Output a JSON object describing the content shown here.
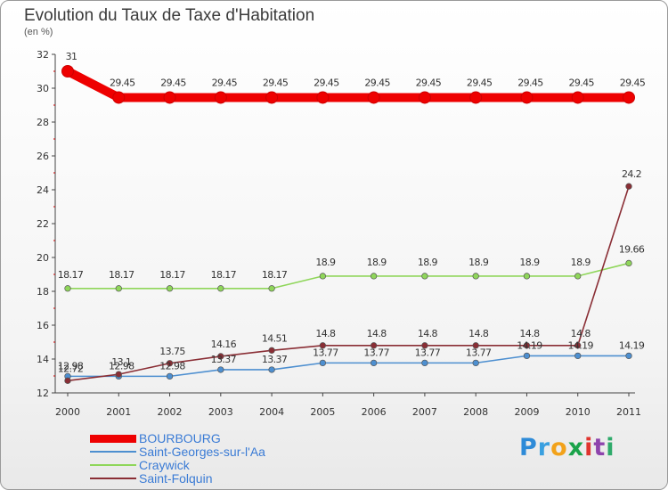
{
  "header": {
    "title": "Evolution du Taux de Taxe d'Habitation",
    "subtitle": "(en %)"
  },
  "logo": {
    "letters": [
      "P",
      "r",
      "o",
      "x",
      "i",
      "t",
      "i"
    ],
    "colors": [
      "#2e8bd8",
      "#3aa0e0",
      "#f2a21a",
      "#1aa34a",
      "#e0342e",
      "#8e44ad",
      "#2eaa6a"
    ]
  },
  "chart_data": {
    "type": "line",
    "title": "Evolution du Taux de Taxe d'Habitation",
    "ylabel": "(en %)",
    "xlabel": "",
    "categories": [
      "2000",
      "2001",
      "2002",
      "2003",
      "2004",
      "2005",
      "2006",
      "2007",
      "2008",
      "2009",
      "2010",
      "2011"
    ],
    "ylim": [
      12,
      32
    ],
    "yticks": [
      12,
      14,
      16,
      18,
      20,
      22,
      24,
      26,
      28,
      30,
      32
    ],
    "grid": false,
    "legend": "bottom-left",
    "series": [
      {
        "name": "BOURBOURG",
        "color": "#ee0000",
        "values": [
          31,
          29.45,
          29.45,
          29.45,
          29.45,
          29.45,
          29.45,
          29.45,
          29.45,
          29.45,
          29.45,
          29.45
        ],
        "labels": [
          "31",
          "29.45",
          "29.45",
          "29.45",
          "29.45",
          "29.45",
          "29.45",
          "29.45",
          "29.45",
          "29.45",
          "29.45",
          "29.45"
        ]
      },
      {
        "name": "Saint-Georges-sur-l'Aa",
        "color": "#4d8fd0",
        "values": [
          12.98,
          12.98,
          12.98,
          13.37,
          13.37,
          13.77,
          13.77,
          13.77,
          13.77,
          14.19,
          14.19,
          14.19
        ],
        "labels": [
          "12.98",
          "12.98",
          "12.98",
          "13.37",
          "13.37",
          "13.77",
          "13.77",
          "13.77",
          "13.77",
          "14.19",
          "14.19",
          "14.19"
        ]
      },
      {
        "name": "Craywick",
        "color": "#8fd65a",
        "values": [
          18.17,
          18.17,
          18.17,
          18.17,
          18.17,
          18.9,
          18.9,
          18.9,
          18.9,
          18.9,
          18.9,
          19.66
        ],
        "labels": [
          "18.17",
          "18.17",
          "18.17",
          "18.17",
          "18.17",
          "18.9",
          "18.9",
          "18.9",
          "18.9",
          "18.9",
          "18.9",
          "19.66"
        ]
      },
      {
        "name": "Saint-Folquin",
        "color": "#8a2e35",
        "values": [
          12.72,
          13.1,
          13.75,
          14.16,
          14.51,
          14.8,
          14.8,
          14.8,
          14.8,
          14.8,
          14.8,
          24.2
        ],
        "labels": [
          "12.72",
          "13.1",
          "13.75",
          "14.16",
          "14.51",
          "14.8",
          "14.8",
          "14.8",
          "14.8",
          "14.8",
          "14.8",
          "24.2"
        ]
      }
    ]
  }
}
